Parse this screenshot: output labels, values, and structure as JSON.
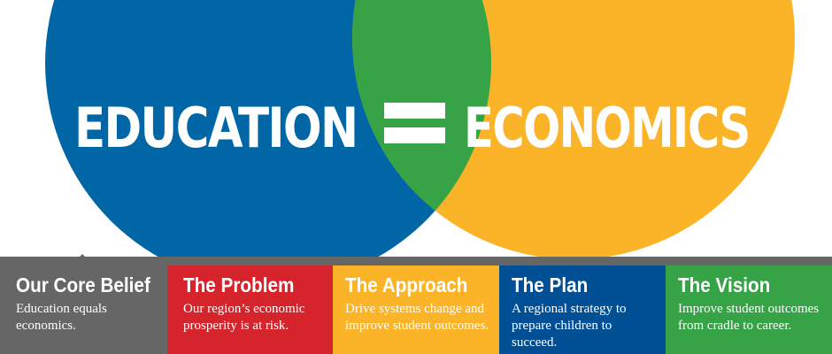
{
  "hero": {
    "left_word": "EDUCATION",
    "right_word": "ECONOMICS"
  },
  "colors": {
    "left_circle": "#0066a6",
    "right_circle": "#fbb328",
    "overlap": "#36a347",
    "core_belief": "#666666",
    "problem": "#d5242b",
    "approach": "#fbb328",
    "plan": "#015096",
    "vision": "#36a347"
  },
  "tabs": [
    {
      "title": "Our Core Belief",
      "desc": "Education equals economics.",
      "color": "#666666"
    },
    {
      "title": "The Problem",
      "desc": "Our region’s economic prosperity is at risk.",
      "color": "#d5242b"
    },
    {
      "title": "The Approach",
      "desc": "Drive systems change and improve student outcomes.",
      "color": "#fbb328"
    },
    {
      "title": "The Plan",
      "desc": "A regional strategy to prepare children to succeed.",
      "color": "#015096"
    },
    {
      "title": "The Vision",
      "desc": "Improve student outcomes from cradle to career.",
      "color": "#36a347"
    }
  ]
}
